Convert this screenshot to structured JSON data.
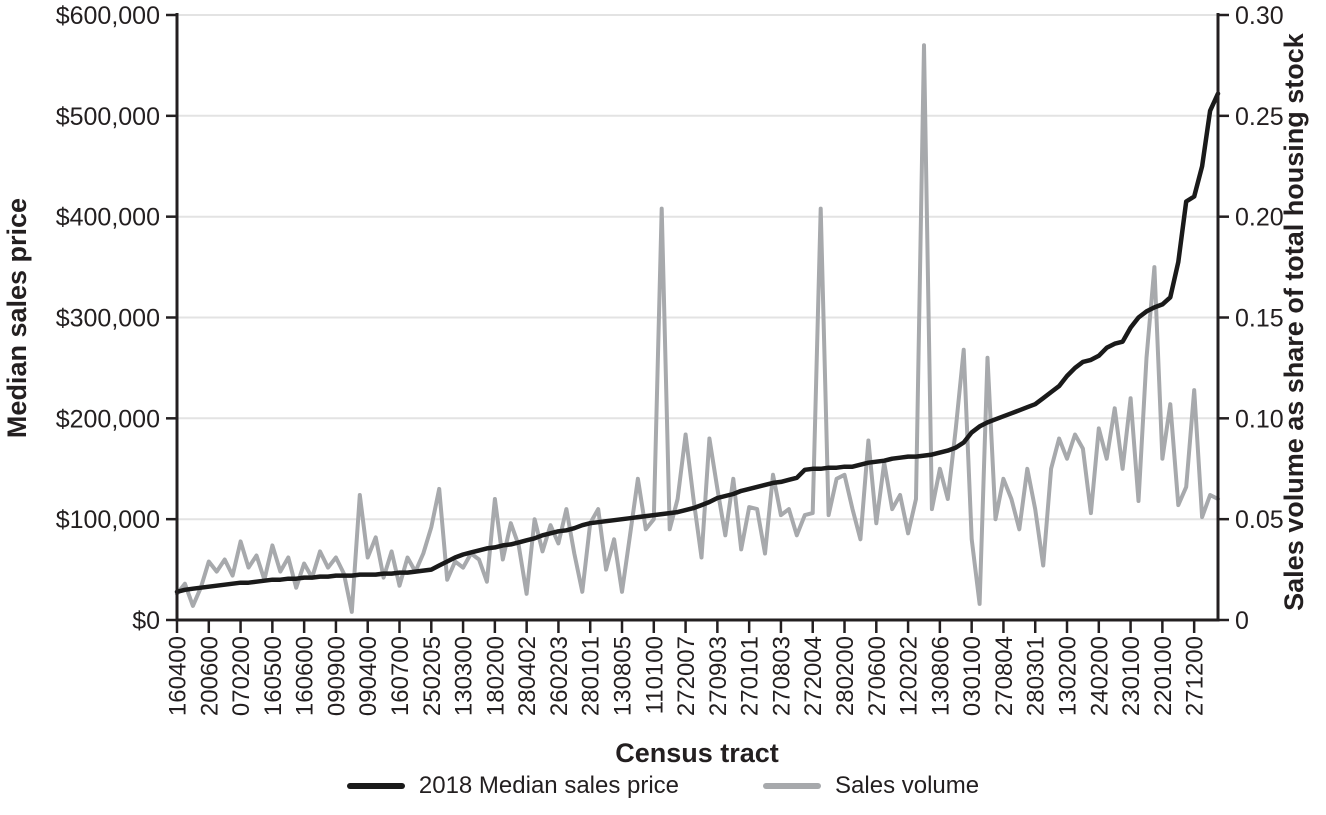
{
  "chart_data": {
    "type": "line",
    "title": "",
    "x_label": "Census tract",
    "points_per_tick": 4,
    "x_tick_labels": [
      "160400",
      "200600",
      "070200",
      "160500",
      "160600",
      "090900",
      "090400",
      "160700",
      "250205",
      "130300",
      "180200",
      "280402",
      "260203",
      "280101",
      "130805",
      "110100",
      "272007",
      "270903",
      "270101",
      "270803",
      "272004",
      "280200",
      "270600",
      "120202",
      "130806",
      "030100",
      "270804",
      "280301",
      "130200",
      "240200",
      "230100",
      "220100",
      "271200"
    ],
    "left_axis": {
      "label": "Median sales price",
      "min": 0,
      "max": 600000,
      "tick_values": [
        0,
        100000,
        200000,
        300000,
        400000,
        500000,
        600000
      ],
      "tick_labels": [
        "$0",
        "$100,000",
        "$200,000",
        "$300,000",
        "$400,000",
        "$500,000",
        "$600,000"
      ]
    },
    "right_axis": {
      "label": "Sales volume as share of total housing stock",
      "min": 0,
      "max": 0.3,
      "tick_values": [
        0,
        0.05,
        0.1,
        0.15,
        0.2,
        0.25,
        0.3
      ],
      "tick_labels": [
        "0",
        "0.05",
        "0.10",
        "0.15",
        "0.20",
        "0.25",
        "0.30"
      ]
    },
    "grid": "horizontal",
    "legend_position": "bottom",
    "series": [
      {
        "name": "2018 Median sales price",
        "axis": "left",
        "color": "#1a1a1a",
        "stroke_width": 4.5,
        "values": [
          28000,
          30000,
          31000,
          32000,
          33000,
          34000,
          35000,
          36000,
          37000,
          37000,
          38000,
          39000,
          40000,
          40000,
          41000,
          41000,
          42000,
          42000,
          43000,
          43000,
          44000,
          44000,
          44000,
          45000,
          45000,
          45000,
          46000,
          46000,
          47000,
          47000,
          48000,
          49000,
          50000,
          54000,
          58000,
          62000,
          65000,
          67000,
          69000,
          71000,
          72000,
          74000,
          75000,
          77000,
          79000,
          81000,
          84000,
          86000,
          88000,
          89000,
          91000,
          94000,
          96000,
          97000,
          98000,
          99000,
          100000,
          101000,
          102000,
          103000,
          104000,
          105000,
          106000,
          107000,
          109000,
          111000,
          114000,
          117000,
          121000,
          123000,
          125000,
          128000,
          130000,
          132000,
          134000,
          136000,
          137000,
          139000,
          141000,
          149000,
          150000,
          150000,
          151000,
          151000,
          152000,
          152000,
          154000,
          156000,
          157000,
          158000,
          160000,
          161000,
          162000,
          162000,
          163000,
          164000,
          166000,
          168000,
          171000,
          176000,
          186000,
          192000,
          196000,
          199000,
          202000,
          205000,
          208000,
          211000,
          214000,
          220000,
          226000,
          232000,
          242000,
          250000,
          256000,
          258000,
          262000,
          270000,
          274000,
          276000,
          290000,
          300000,
          306000,
          310000,
          313000,
          320000,
          355000,
          415000,
          420000,
          450000,
          505000,
          522000
        ]
      },
      {
        "name": "Sales volume",
        "axis": "right",
        "color": "#a7a9ac",
        "stroke_width": 4,
        "values": [
          0.013,
          0.018,
          0.007,
          0.016,
          0.029,
          0.024,
          0.03,
          0.022,
          0.039,
          0.026,
          0.032,
          0.02,
          0.037,
          0.024,
          0.031,
          0.016,
          0.028,
          0.021,
          0.034,
          0.026,
          0.031,
          0.023,
          0.004,
          0.062,
          0.031,
          0.041,
          0.021,
          0.034,
          0.017,
          0.031,
          0.024,
          0.033,
          0.046,
          0.065,
          0.02,
          0.029,
          0.026,
          0.033,
          0.03,
          0.019,
          0.06,
          0.03,
          0.048,
          0.037,
          0.013,
          0.05,
          0.034,
          0.047,
          0.038,
          0.055,
          0.033,
          0.014,
          0.048,
          0.055,
          0.025,
          0.04,
          0.014,
          0.042,
          0.07,
          0.045,
          0.05,
          0.204,
          0.045,
          0.06,
          0.092,
          0.06,
          0.031,
          0.09,
          0.065,
          0.042,
          0.07,
          0.035,
          0.056,
          0.055,
          0.033,
          0.072,
          0.052,
          0.055,
          0.042,
          0.052,
          0.053,
          0.204,
          0.052,
          0.07,
          0.072,
          0.055,
          0.04,
          0.089,
          0.048,
          0.078,
          0.055,
          0.062,
          0.043,
          0.06,
          0.285,
          0.055,
          0.075,
          0.06,
          0.095,
          0.134,
          0.04,
          0.008,
          0.13,
          0.05,
          0.07,
          0.06,
          0.045,
          0.075,
          0.055,
          0.027,
          0.075,
          0.09,
          0.08,
          0.092,
          0.085,
          0.053,
          0.095,
          0.08,
          0.105,
          0.075,
          0.11,
          0.059,
          0.13,
          0.175,
          0.08,
          0.107,
          0.057,
          0.066,
          0.114,
          0.051,
          0.062,
          0.06
        ]
      }
    ]
  }
}
